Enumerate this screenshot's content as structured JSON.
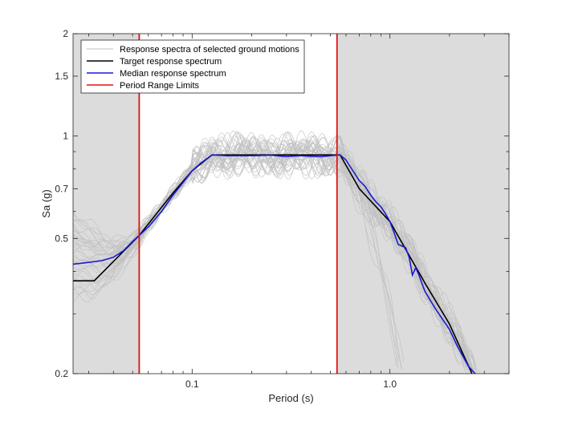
{
  "chart_data": {
    "type": "line",
    "xlabel": "Period (s)",
    "ylabel": "Sa (g)",
    "xscale": "log",
    "yscale": "log",
    "xlim": [
      0.025,
      4.0
    ],
    "ylim": [
      0.2,
      2.0
    ],
    "x_ticks": [
      {
        "value": 0.1,
        "label": "0.1"
      },
      {
        "value": 1.0,
        "label": "1.0"
      }
    ],
    "y_ticks": [
      {
        "value": 0.2,
        "label": "0.2"
      },
      {
        "value": 0.5,
        "label": "0.5"
      },
      {
        "value": 0.7,
        "label": "0.7"
      },
      {
        "value": 1.0,
        "label": "1"
      },
      {
        "value": 1.5,
        "label": "1.5"
      },
      {
        "value": 2.0,
        "label": "2"
      }
    ],
    "grid": false,
    "legend_position": "top-left",
    "shaded_regions": [
      {
        "x": [
          0.025,
          0.054
        ],
        "color": "#dcdcdc"
      },
      {
        "x": [
          0.54,
          4.0
        ],
        "color": "#dcdcdc"
      }
    ],
    "series": [
      {
        "name": "Response spectra of selected ground motions",
        "color": "#c0c0c0",
        "kind": "ensemble",
        "count": 40
      },
      {
        "name": "Target response spectrum",
        "color": "#000000",
        "x": [
          0.025,
          0.032,
          0.054,
          0.08,
          0.1,
          0.126,
          0.2,
          0.3,
          0.4,
          0.56,
          0.7,
          1.0,
          1.5,
          2.0,
          2.6
        ],
        "y": [
          0.375,
          0.375,
          0.51,
          0.68,
          0.79,
          0.88,
          0.88,
          0.88,
          0.88,
          0.88,
          0.7,
          0.56,
          0.37,
          0.28,
          0.2
        ]
      },
      {
        "name": "Median response spectrum",
        "color": "#1a1ad6",
        "x": [
          0.025,
          0.03,
          0.035,
          0.04,
          0.045,
          0.05,
          0.054,
          0.06,
          0.07,
          0.08,
          0.09,
          0.1,
          0.11,
          0.126,
          0.15,
          0.2,
          0.25,
          0.3,
          0.35,
          0.4,
          0.45,
          0.5,
          0.56,
          0.6,
          0.65,
          0.7,
          0.75,
          0.8,
          0.85,
          0.9,
          0.95,
          1.0,
          1.05,
          1.1,
          1.2,
          1.25,
          1.3,
          1.35,
          1.4,
          1.5,
          1.7,
          2.0,
          2.2,
          2.5,
          2.7
        ],
        "y": [
          0.42,
          0.425,
          0.43,
          0.44,
          0.46,
          0.49,
          0.51,
          0.54,
          0.6,
          0.67,
          0.73,
          0.79,
          0.83,
          0.88,
          0.875,
          0.875,
          0.878,
          0.87,
          0.875,
          0.872,
          0.87,
          0.875,
          0.88,
          0.85,
          0.79,
          0.74,
          0.71,
          0.67,
          0.64,
          0.62,
          0.59,
          0.56,
          0.52,
          0.48,
          0.47,
          0.44,
          0.39,
          0.41,
          0.39,
          0.35,
          0.31,
          0.27,
          0.24,
          0.21,
          0.195
        ]
      },
      {
        "name": "Period Range Limits",
        "color": "#e01010",
        "kind": "vlines",
        "x": [
          0.054,
          0.54
        ]
      }
    ]
  }
}
